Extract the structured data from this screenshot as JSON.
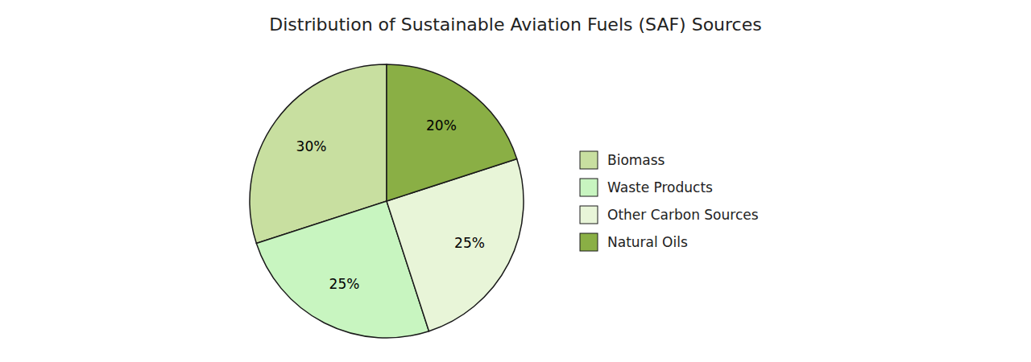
{
  "chart_data": {
    "type": "pie",
    "title": "Distribution of Sustainable Aviation Fuels (SAF) Sources",
    "categories": [
      "Biomass",
      "Waste Products",
      "Other Carbon Sources",
      "Natural Oils"
    ],
    "values": [
      30,
      25,
      25,
      20
    ],
    "value_labels": [
      "30%",
      "25%",
      "25%",
      "20%"
    ],
    "colors": [
      "#c8dfa0",
      "#c8f5c0",
      "#e8f5d8",
      "#8aaf45"
    ],
    "data_labels": true,
    "legend": "right"
  }
}
